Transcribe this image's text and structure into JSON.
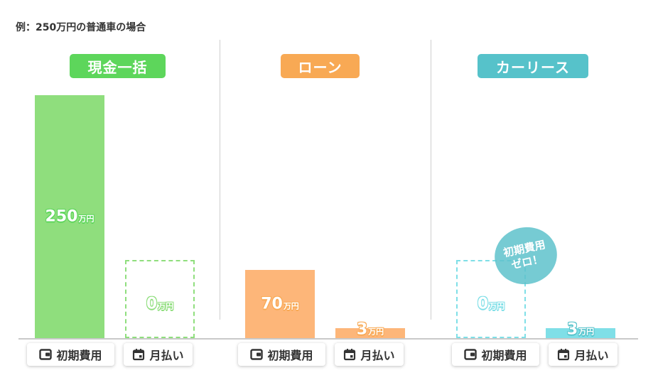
{
  "note": "例：250万円の普通車の場合",
  "unit": "万円",
  "zero_badge": {
    "line1": "初期費用",
    "line2": "ゼロ！"
  },
  "groups": [
    {
      "title": "現金一括",
      "color": "#5dd65b",
      "bar_color": "#8fde7d"
    },
    {
      "title": "ローン",
      "color": "#f8a954",
      "bar_color": "#fdb679"
    },
    {
      "title": "カーリース",
      "color": "#56c2ca",
      "bar_color": "#7fdfe7"
    }
  ],
  "labels": {
    "initial": "初期費用",
    "monthly": "月払い"
  },
  "icons": {
    "initial": "wallet-icon",
    "monthly": "calendar-icon"
  },
  "chart_data": {
    "type": "bar",
    "categories": [
      "初期費用",
      "月払い"
    ],
    "series": [
      {
        "name": "現金一括",
        "values": [
          250,
          0
        ],
        "value_labels": [
          "250",
          "0"
        ]
      },
      {
        "name": "ローン",
        "values": [
          70,
          3
        ],
        "value_labels": [
          "70",
          "3"
        ]
      },
      {
        "name": "カーリース",
        "values": [
          0,
          3
        ],
        "value_labels": [
          "0",
          "3"
        ]
      }
    ],
    "ylim": [
      0,
      250
    ],
    "value_unit": "万円",
    "grid": false
  }
}
